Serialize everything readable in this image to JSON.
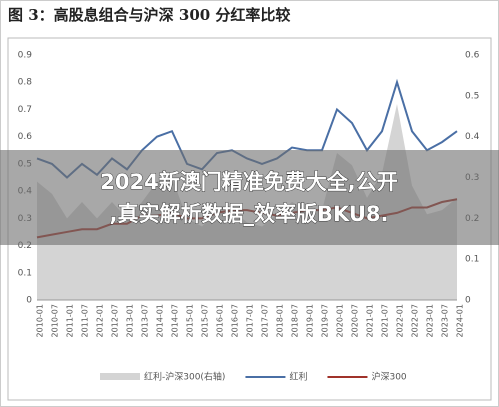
{
  "chart_data": {
    "type": "line",
    "title": "图 3：高股息组合与沪深 300 分红率比较",
    "categories": [
      "2010-01",
      "2010-07",
      "2011-01",
      "2011-07",
      "2012-01",
      "2012-07",
      "2013-01",
      "2013-07",
      "2014-01",
      "2014-07",
      "2015-01",
      "2015-07",
      "2016-01",
      "2016-07",
      "2017-01",
      "2017-07",
      "2018-01",
      "2018-07",
      "2019-01",
      "2019-07",
      "2020-01",
      "2020-07",
      "2021-01",
      "2021-07",
      "2022-01",
      "2022-07",
      "2023-01",
      "2023-07",
      "2024-01"
    ],
    "series": [
      {
        "name": "红利-沪深300(右轴)",
        "color": "#d4d4d4",
        "axis": "y2",
        "values": [
          0.29,
          0.26,
          0.2,
          0.24,
          0.2,
          0.24,
          0.2,
          0.24,
          0.29,
          0.3,
          0.2,
          0.18,
          0.22,
          0.22,
          0.19,
          0.18,
          0.21,
          0.24,
          0.22,
          0.22,
          0.36,
          0.33,
          0.25,
          0.31,
          0.48,
          0.28,
          0.21,
          0.22,
          0.25
        ]
      },
      {
        "name": "红利",
        "color": "#4a6fa5",
        "values": [
          0.52,
          0.5,
          0.45,
          0.5,
          0.46,
          0.52,
          0.48,
          0.55,
          0.6,
          0.62,
          0.5,
          0.48,
          0.54,
          0.55,
          0.52,
          0.5,
          0.52,
          0.56,
          0.55,
          0.55,
          0.7,
          0.65,
          0.55,
          0.62,
          0.8,
          0.62,
          0.55,
          0.58,
          0.62
        ]
      },
      {
        "name": "沪深300",
        "color": "#a0322a",
        "values": [
          0.23,
          0.24,
          0.25,
          0.26,
          0.26,
          0.28,
          0.28,
          0.31,
          0.31,
          0.32,
          0.3,
          0.3,
          0.32,
          0.33,
          0.33,
          0.32,
          0.31,
          0.32,
          0.33,
          0.33,
          0.34,
          0.32,
          0.3,
          0.31,
          0.32,
          0.34,
          0.34,
          0.36,
          0.37
        ]
      }
    ],
    "ylim": [
      0,
      0.9
    ],
    "yticks": [
      0,
      0.1,
      0.2,
      0.3,
      0.4,
      0.5,
      0.6,
      0.7,
      0.8,
      0.9
    ],
    "y2lim": [
      0,
      0.6
    ],
    "y2ticks": [
      0,
      0.1,
      0.2,
      0.3,
      0.4,
      0.5,
      0.6
    ],
    "grid": false,
    "legend": "bottom"
  },
  "overlay_text": [
    "2024新澳门精准免费大全,公开",
    ",真实解析数据_效率版BKU8."
  ]
}
